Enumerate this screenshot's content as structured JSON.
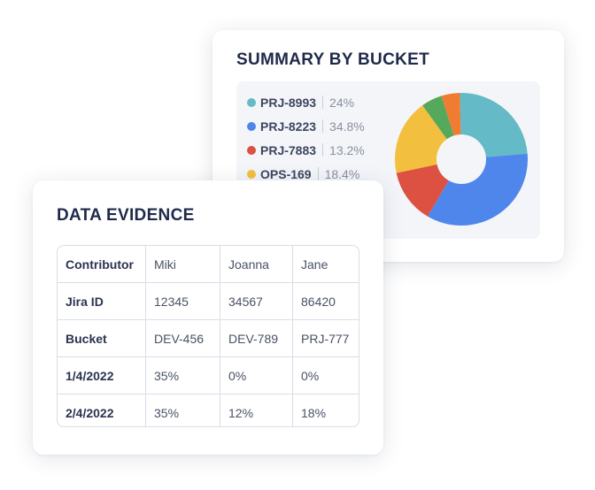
{
  "summary": {
    "title": "SUMMARY BY BUCKET",
    "legend": [
      {
        "name": "PRJ-8993",
        "percent": "24%",
        "color": "#64bac6"
      },
      {
        "name": "PRJ-8223",
        "percent": "34.8%",
        "color": "#4f86ec"
      },
      {
        "name": "PRJ-7883",
        "percent": "13.2%",
        "color": "#dc5141"
      },
      {
        "name": "OPS-169",
        "percent": "18.4%",
        "color": "#f3bf3e"
      }
    ],
    "donut_segments": [
      {
        "value": 24,
        "color": "#64bac6"
      },
      {
        "value": 34.8,
        "color": "#4f86ec"
      },
      {
        "value": 13.2,
        "color": "#dc5141"
      },
      {
        "value": 18.4,
        "color": "#f3bf3e"
      },
      {
        "value": 5.1,
        "color": "#56a85a"
      },
      {
        "value": 4.5,
        "color": "#ef7c31"
      }
    ]
  },
  "evidence": {
    "title": "DATA EVIDENCE",
    "rows": [
      {
        "label": "Contributor",
        "cells": [
          "Miki",
          "Joanna",
          "Jane"
        ]
      },
      {
        "label": "Jira ID",
        "cells": [
          "12345",
          "34567",
          "86420"
        ]
      },
      {
        "label": "Bucket",
        "cells": [
          "DEV-456",
          "DEV-789",
          "PRJ-777"
        ]
      },
      {
        "label": "1/4/2022",
        "cells": [
          "35%",
          "0%",
          "0%"
        ]
      },
      {
        "label": "2/4/2022",
        "cells": [
          "35%",
          "12%",
          "18%"
        ]
      }
    ]
  }
}
